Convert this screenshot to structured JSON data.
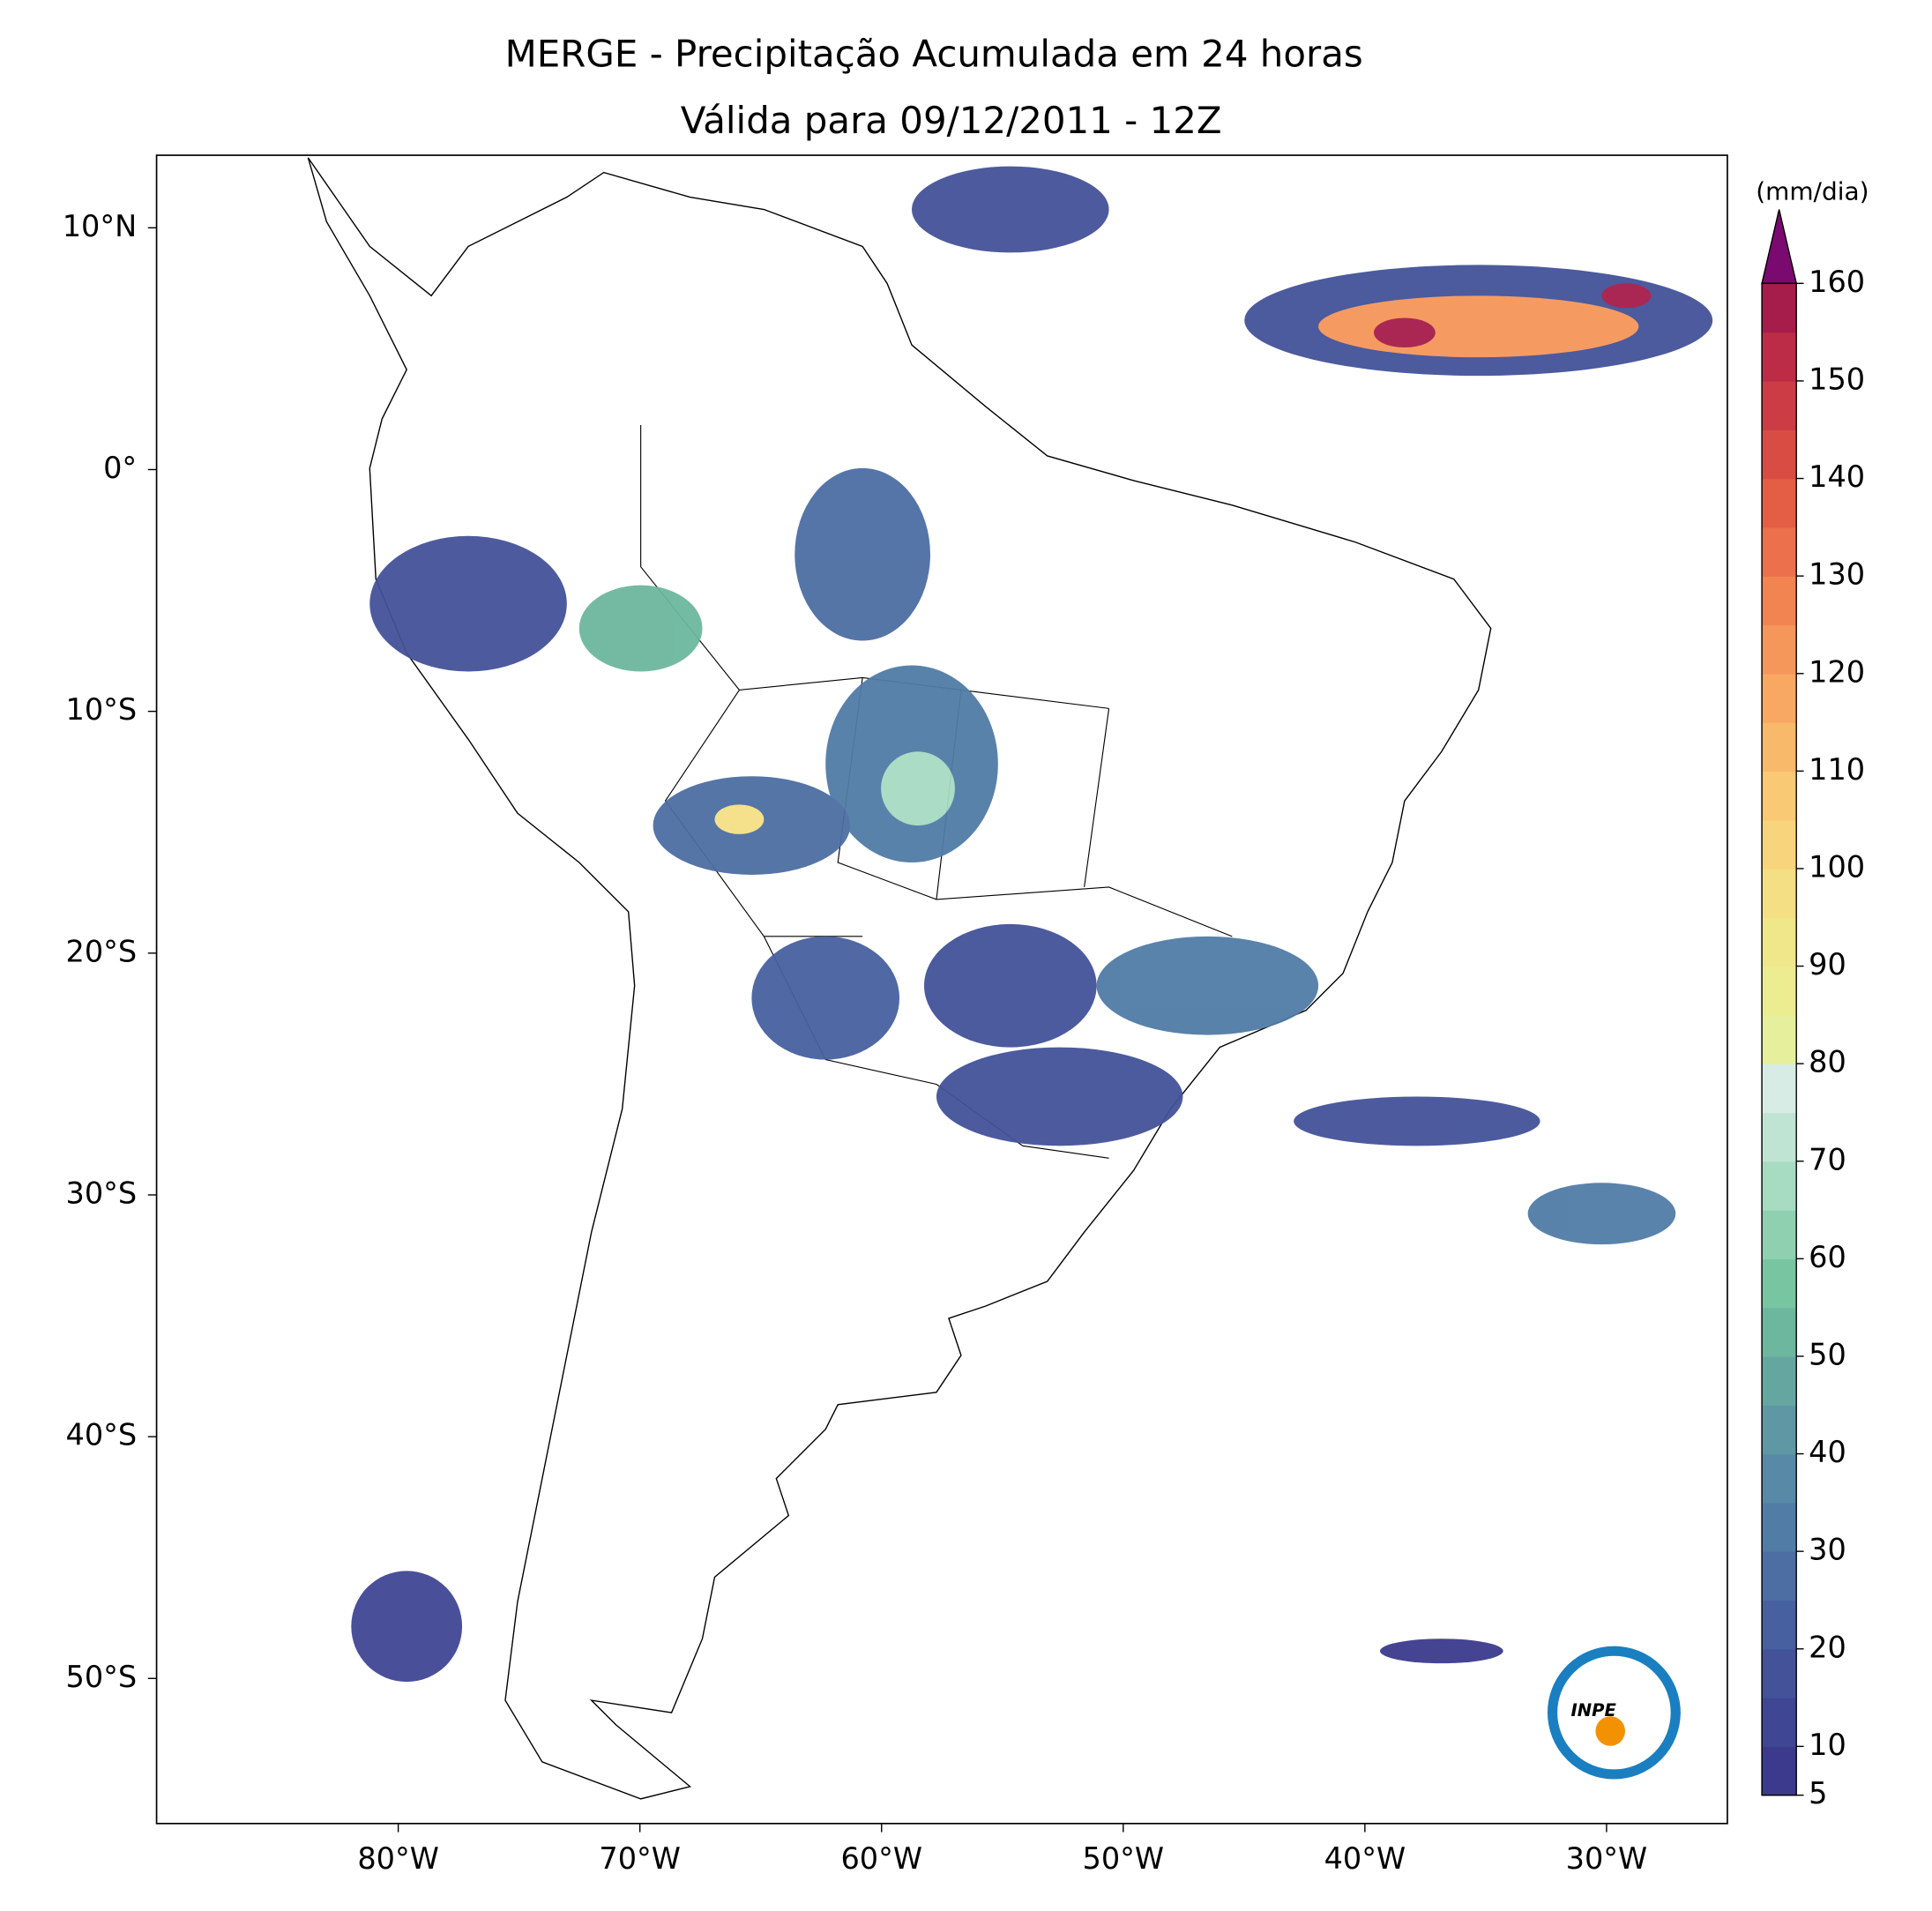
{
  "map": {
    "title": [
      "MERGE - Precipitação Acumulada em 24 horas",
      "Válida para 09/12/2011 - 12Z"
    ],
    "xlim": [
      -90,
      -25
    ],
    "ylim": [
      -56,
      13
    ],
    "xticks": [
      {
        "value": -80,
        "label": "80°W"
      },
      {
        "value": -70,
        "label": "70°W"
      },
      {
        "value": -60,
        "label": "60°W"
      },
      {
        "value": -50,
        "label": "50°W"
      },
      {
        "value": -40,
        "label": "40°W"
      },
      {
        "value": -30,
        "label": "30°W"
      }
    ],
    "yticks": [
      {
        "value": 10,
        "label": "10°N"
      },
      {
        "value": 0,
        "label": "0°"
      },
      {
        "value": -10,
        "label": "10°S"
      },
      {
        "value": -20,
        "label": "20°S"
      },
      {
        "value": -30,
        "label": "30°S"
      },
      {
        "value": -40,
        "label": "40°S"
      },
      {
        "value": -50,
        "label": "50°S"
      }
    ],
    "logo": "INPE"
  },
  "colorbar": {
    "label": "(mm/dia)",
    "lim": [
      5,
      160
    ],
    "ticks": [
      5,
      10,
      20,
      30,
      40,
      50,
      60,
      70,
      80,
      90,
      100,
      110,
      120,
      130,
      140,
      150,
      160
    ],
    "colors": [
      "#3b3a8c",
      "#3f4693",
      "#435299",
      "#47609f",
      "#4c6ea3",
      "#517ca6",
      "#5889a6",
      "#5f97a4",
      "#66a6a1",
      "#6db79e",
      "#78c5a2",
      "#8fd0b1",
      "#a7dbc2",
      "#c0e4d3",
      "#d7ece4",
      "#e6ef9c",
      "#ecec90",
      "#f0e68a",
      "#f5df85",
      "#f8d57c",
      "#fac974",
      "#f9b96a",
      "#f8a862",
      "#f5965a",
      "#f28452",
      "#ec704b",
      "#e35e45",
      "#d94c43",
      "#cc3c44",
      "#bd2c47",
      "#a61c4a"
    ],
    "extend_color": "#7b0a70"
  }
}
